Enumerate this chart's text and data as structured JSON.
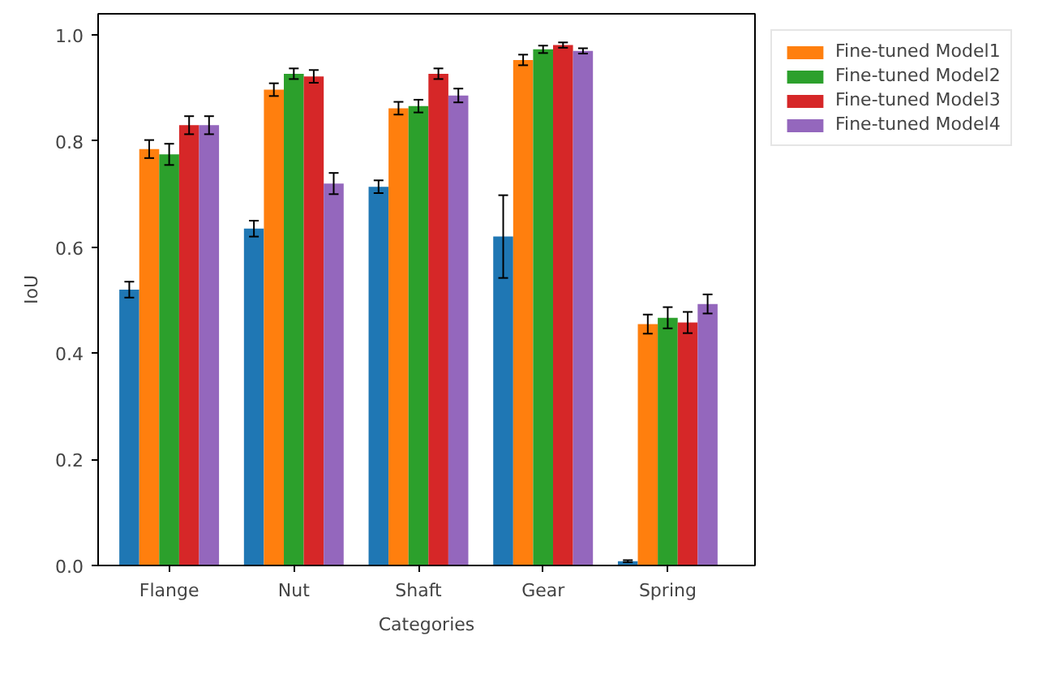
{
  "chart_data": {
    "type": "bar",
    "xlabel": "Categories",
    "ylabel": "IoU",
    "categories": [
      "Flange",
      "Nut",
      "Shaft",
      "Gear",
      "Spring"
    ],
    "series": [
      {
        "color": "#1f77b4",
        "values": [
          0.52,
          0.635,
          0.714,
          0.62,
          0.008
        ],
        "errors": [
          0.015,
          0.015,
          0.012,
          0.078,
          0.002
        ]
      },
      {
        "name": "Fine-tuned Model1",
        "color": "#ff7f0e",
        "values": [
          0.785,
          0.897,
          0.862,
          0.953,
          0.455
        ],
        "errors": [
          0.017,
          0.012,
          0.012,
          0.01,
          0.018
        ]
      },
      {
        "name": "Fine-tuned Model2",
        "color": "#2ca02c",
        "values": [
          0.775,
          0.927,
          0.866,
          0.973,
          0.467
        ],
        "errors": [
          0.02,
          0.01,
          0.012,
          0.007,
          0.02
        ]
      },
      {
        "name": "Fine-tuned Model3",
        "color": "#d62728",
        "values": [
          0.83,
          0.922,
          0.927,
          0.981,
          0.458
        ],
        "errors": [
          0.017,
          0.012,
          0.01,
          0.005,
          0.02
        ]
      },
      {
        "name": "Fine-tuned Model4",
        "color": "#9467bd",
        "values": [
          0.83,
          0.72,
          0.886,
          0.97,
          0.493
        ],
        "errors": [
          0.017,
          0.02,
          0.013,
          0.005,
          0.018
        ]
      }
    ],
    "ylim": [
      0,
      1.04
    ],
    "yticks": [
      {
        "value": 0,
        "label": "0.0"
      },
      {
        "value": 0.2,
        "label": "0.2"
      },
      {
        "value": 0.4,
        "label": "0.4"
      },
      {
        "value": 0.6,
        "label": "0.6"
      },
      {
        "value": 0.8,
        "label": "0.8"
      },
      {
        "value": 1.0,
        "label": "1.0"
      }
    ],
    "legend": "top right",
    "grid": false
  }
}
